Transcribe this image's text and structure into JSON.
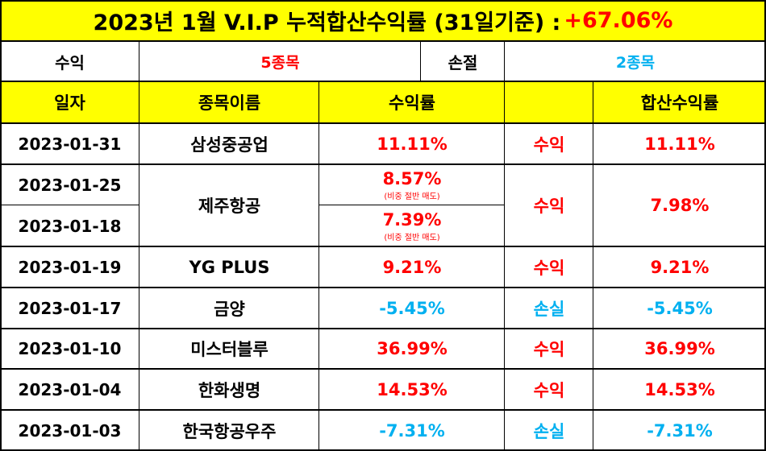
{
  "title": {
    "main": "2023년 1월 V.I.P 누적합산수익률 (31일기준) : ",
    "total": "+67.06%"
  },
  "summary": {
    "profit_label": "수익",
    "profit_count": "5종목",
    "loss_label": "손절",
    "loss_count": "2종목"
  },
  "header": {
    "date": "일자",
    "name": "종목이름",
    "return": "수익률",
    "result": "",
    "combined": "합산수익률"
  },
  "rows": [
    {
      "date": "2023-01-31",
      "name": "삼성중공업",
      "return": "11.11%",
      "note": "",
      "result": "수익",
      "combined": "11.11%"
    },
    {
      "date": "2023-01-25",
      "name": "제주항공",
      "return": "8.57%",
      "note": "(비중 절반 매도)",
      "result": "수익",
      "combined": "7.98%"
    },
    {
      "date": "2023-01-18",
      "name": "",
      "return": "7.39%",
      "note": "(비중 절반 매도)",
      "result": "",
      "combined": ""
    },
    {
      "date": "2023-01-19",
      "name": "YG PLUS",
      "return": "9.21%",
      "note": "",
      "result": "수익",
      "combined": "9.21%"
    },
    {
      "date": "2023-01-17",
      "name": "금양",
      "return": "-5.45%",
      "note": "",
      "result": "손실",
      "combined": "-5.45%"
    },
    {
      "date": "2023-01-10",
      "name": "미스터블루",
      "return": "36.99%",
      "note": "",
      "result": "수익",
      "combined": "36.99%"
    },
    {
      "date": "2023-01-04",
      "name": "한화생명",
      "return": "14.53%",
      "note": "",
      "result": "수익",
      "combined": "14.53%"
    },
    {
      "date": "2023-01-03",
      "name": "한국항공우주",
      "return": "-7.31%",
      "note": "",
      "result": "손실",
      "combined": "-7.31%"
    }
  ],
  "colors": {
    "header_bg": "#ffff00",
    "profit": "#ff0000",
    "loss": "#00b0f0"
  }
}
